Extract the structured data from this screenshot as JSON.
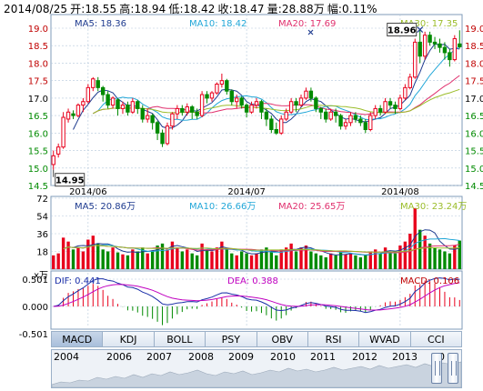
{
  "header": {
    "date": "2014/08/25",
    "open": "开:18.55",
    "high": "高:18.94",
    "low": "低:18.42",
    "close": "收:18.47",
    "volume": "量:28.88万",
    "change": "幅:0.11%"
  },
  "tabs": [
    {
      "label": "MACD",
      "active": true
    },
    {
      "label": "KDJ",
      "active": false
    },
    {
      "label": "BOLL",
      "active": false
    },
    {
      "label": "PSY",
      "active": false
    },
    {
      "label": "OBV",
      "active": false
    },
    {
      "label": "RSI",
      "active": false
    },
    {
      "label": "WVAD",
      "active": false
    },
    {
      "label": "CCI",
      "active": false
    }
  ],
  "timeline": {
    "years": [
      "2004",
      "2006",
      "2007",
      "2008",
      "2009",
      "2010",
      "2011",
      "2012",
      "2013",
      "20"
    ]
  },
  "colors": {
    "up": "#e8001c",
    "down": "#008a00",
    "ma5": "#1e3b8f",
    "ma10": "#22a7d8",
    "ma20": "#e0306e",
    "ma30": "#9bbd2a",
    "grid": "#b5c8dc",
    "border": "#7f9bb8"
  },
  "chart_data": [
    {
      "type": "candlestick",
      "legend": [
        "MA5: 18.36",
        "MA10: 18.42",
        "MA20: 17.69",
        "MA30: 17.35"
      ],
      "ylim": [
        14.5,
        19.0
      ],
      "yticks": [
        "19.0",
        "18.5",
        "18.0",
        "17.5",
        "17.0",
        "16.5",
        "16.0",
        "15.5",
        "15.0",
        "14.5"
      ],
      "xticks": [
        "2014/06",
        "2014/07",
        "2014/08"
      ],
      "annotations": [
        {
          "label": "18.96",
          "x": "2014/08 (late)",
          "value": 18.96
        },
        {
          "label": "14.95",
          "x": "2014/05 (late)",
          "value": 14.95
        }
      ],
      "candles": [
        [
          15.1,
          15.35,
          14.95,
          15.5
        ],
        [
          15.4,
          15.6,
          15.3,
          15.7
        ],
        [
          15.6,
          16.45,
          15.55,
          16.6
        ],
        [
          16.4,
          16.6,
          16.3,
          16.7
        ],
        [
          16.55,
          16.5,
          16.4,
          16.65
        ],
        [
          16.5,
          16.8,
          16.45,
          16.85
        ],
        [
          16.8,
          16.9,
          16.6,
          17.0
        ],
        [
          16.9,
          17.3,
          16.85,
          17.4
        ],
        [
          17.3,
          17.55,
          17.2,
          17.6
        ],
        [
          17.5,
          17.3,
          17.2,
          17.6
        ],
        [
          17.3,
          17.1,
          16.9,
          17.35
        ],
        [
          17.1,
          16.8,
          16.7,
          17.2
        ],
        [
          16.8,
          17.0,
          16.7,
          17.05
        ],
        [
          16.95,
          16.7,
          16.5,
          17.0
        ],
        [
          16.7,
          16.8,
          16.55,
          16.9
        ],
        [
          16.8,
          16.6,
          16.5,
          16.9
        ],
        [
          16.6,
          16.9,
          16.55,
          17.0
        ],
        [
          16.9,
          16.7,
          16.55,
          16.95
        ],
        [
          16.7,
          16.4,
          16.3,
          16.8
        ],
        [
          16.4,
          16.5,
          16.3,
          16.7
        ],
        [
          16.5,
          16.3,
          16.1,
          16.55
        ],
        [
          16.3,
          16.0,
          15.8,
          16.35
        ],
        [
          16.0,
          15.7,
          15.6,
          16.1
        ],
        [
          15.7,
          16.2,
          15.65,
          16.3
        ],
        [
          16.2,
          16.55,
          16.1,
          16.6
        ],
        [
          16.55,
          16.7,
          16.4,
          16.8
        ],
        [
          16.7,
          16.6,
          16.5,
          16.8
        ],
        [
          16.6,
          16.75,
          16.5,
          16.85
        ],
        [
          16.75,
          16.6,
          16.4,
          16.8
        ],
        [
          16.6,
          16.5,
          16.4,
          16.7
        ],
        [
          16.5,
          17.1,
          16.45,
          17.2
        ],
        [
          17.1,
          17.0,
          16.85,
          17.2
        ],
        [
          17.0,
          17.15,
          16.9,
          17.2
        ],
        [
          17.15,
          17.4,
          17.1,
          17.45
        ],
        [
          17.4,
          17.5,
          17.3,
          17.7
        ],
        [
          17.5,
          17.2,
          17.1,
          17.55
        ],
        [
          17.2,
          16.9,
          16.8,
          17.25
        ],
        [
          16.9,
          17.0,
          16.7,
          17.1
        ],
        [
          17.0,
          16.8,
          16.7,
          17.05
        ],
        [
          16.8,
          16.6,
          16.45,
          16.85
        ],
        [
          16.6,
          16.8,
          16.55,
          16.9
        ],
        [
          16.8,
          16.9,
          16.7,
          17.0
        ],
        [
          16.9,
          16.6,
          16.4,
          16.95
        ],
        [
          16.6,
          16.4,
          16.2,
          16.7
        ],
        [
          16.4,
          16.1,
          16.0,
          16.5
        ],
        [
          16.1,
          16.0,
          15.95,
          16.3
        ],
        [
          16.0,
          16.4,
          15.95,
          16.5
        ],
        [
          16.4,
          16.6,
          16.35,
          16.7
        ],
        [
          16.6,
          16.9,
          16.55,
          17.0
        ],
        [
          16.9,
          16.8,
          16.6,
          17.0
        ],
        [
          16.8,
          17.0,
          16.75,
          17.1
        ],
        [
          17.0,
          17.2,
          16.95,
          17.3
        ],
        [
          17.2,
          17.0,
          16.9,
          17.3
        ],
        [
          17.0,
          16.7,
          16.6,
          17.05
        ],
        [
          16.7,
          16.6,
          16.4,
          16.75
        ],
        [
          16.6,
          16.4,
          16.3,
          16.7
        ],
        [
          16.4,
          16.6,
          16.35,
          16.7
        ],
        [
          16.6,
          16.5,
          16.3,
          16.7
        ],
        [
          16.5,
          16.2,
          16.1,
          16.55
        ],
        [
          16.2,
          16.3,
          16.1,
          16.4
        ],
        [
          16.3,
          16.5,
          16.2,
          16.6
        ],
        [
          16.5,
          16.4,
          16.3,
          16.6
        ],
        [
          16.4,
          16.3,
          16.2,
          16.5
        ],
        [
          16.3,
          16.1,
          16.0,
          16.4
        ],
        [
          16.1,
          16.5,
          16.05,
          16.6
        ],
        [
          16.5,
          16.7,
          16.4,
          16.8
        ],
        [
          16.7,
          16.6,
          16.5,
          16.8
        ],
        [
          16.6,
          16.9,
          16.55,
          17.0
        ],
        [
          16.9,
          16.8,
          16.7,
          17.0
        ],
        [
          16.8,
          16.7,
          16.55,
          16.9
        ],
        [
          16.7,
          17.0,
          16.65,
          17.1
        ],
        [
          17.0,
          17.3,
          16.95,
          17.4
        ],
        [
          17.3,
          17.6,
          17.25,
          17.7
        ],
        [
          17.6,
          18.6,
          17.55,
          18.7
        ],
        [
          18.6,
          18.2,
          18.0,
          18.96
        ],
        [
          18.2,
          18.8,
          18.1,
          18.9
        ],
        [
          18.8,
          18.6,
          18.5,
          18.9
        ],
        [
          18.6,
          18.55,
          18.4,
          18.75
        ],
        [
          18.55,
          18.45,
          18.3,
          18.7
        ],
        [
          18.45,
          18.3,
          18.1,
          18.6
        ],
        [
          18.3,
          18.1,
          17.9,
          18.4
        ],
        [
          18.1,
          18.7,
          18.05,
          18.8
        ],
        [
          18.55,
          18.47,
          18.42,
          18.94
        ]
      ]
    },
    {
      "type": "bar",
      "legend": [
        "MA5: 20.86万",
        "MA10: 26.66万",
        "MA20: 25.65万",
        "MA30: 23.24万"
      ],
      "ylim": [
        0,
        72
      ],
      "yticks": [
        "72",
        "54",
        "36",
        "18",
        "x万"
      ],
      "values": [
        14,
        16,
        32,
        28,
        20,
        22,
        18,
        30,
        34,
        26,
        20,
        18,
        22,
        17,
        15,
        14,
        20,
        18,
        22,
        16,
        18,
        24,
        26,
        20,
        28,
        22,
        18,
        20,
        16,
        14,
        26,
        20,
        18,
        22,
        28,
        20,
        16,
        14,
        18,
        16,
        14,
        16,
        20,
        22,
        18,
        14,
        20,
        22,
        26,
        18,
        22,
        24,
        18,
        16,
        14,
        12,
        16,
        14,
        18,
        15,
        16,
        14,
        12,
        14,
        18,
        20,
        16,
        22,
        18,
        16,
        24,
        28,
        36,
        62,
        40,
        34,
        26,
        22,
        20,
        18,
        16,
        24,
        29
      ]
    },
    {
      "type": "line",
      "legend": [
        "DIF: 0.441",
        "DEA: 0.388",
        "MACD: 0.106"
      ],
      "ylim": [
        -0.501,
        0.501
      ],
      "yticks": [
        "0.501",
        "0.000",
        "-0.501"
      ]
    }
  ]
}
